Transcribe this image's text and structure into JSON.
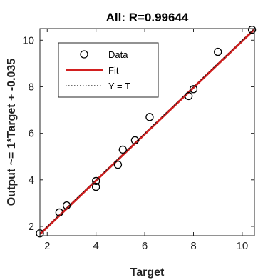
{
  "chart_data": {
    "type": "scatter",
    "title": "All: R=0.99644",
    "xlabel": "Target",
    "ylabel": "Output ~= 1*Target + -0.035",
    "xlim": [
      1.7,
      10.5
    ],
    "ylim": [
      1.6,
      10.5
    ],
    "xticks": [
      2,
      4,
      6,
      8,
      10
    ],
    "yticks": [
      2,
      4,
      6,
      8,
      10
    ],
    "grid": false,
    "legend_position": "top-left",
    "series": [
      {
        "name": "Data",
        "kind": "markers",
        "marker": "circle",
        "color": "#000000",
        "points": [
          [
            1.7,
            1.7
          ],
          [
            2.5,
            2.6
          ],
          [
            2.8,
            2.9
          ],
          [
            4.0,
            3.7
          ],
          [
            4.0,
            3.95
          ],
          [
            4.9,
            4.65
          ],
          [
            5.1,
            5.3
          ],
          [
            5.6,
            5.7
          ],
          [
            6.2,
            6.7
          ],
          [
            7.8,
            7.6
          ],
          [
            8.0,
            7.9
          ],
          [
            9.0,
            9.5
          ],
          [
            10.4,
            10.45
          ]
        ]
      },
      {
        "name": "Fit",
        "kind": "line",
        "color": "#d21f1f",
        "slope": 1.0,
        "intercept": -0.035
      },
      {
        "name": "Y = T",
        "kind": "dotted-line",
        "color": "#1a1a1a",
        "slope": 1.0,
        "intercept": 0.0
      }
    ]
  }
}
